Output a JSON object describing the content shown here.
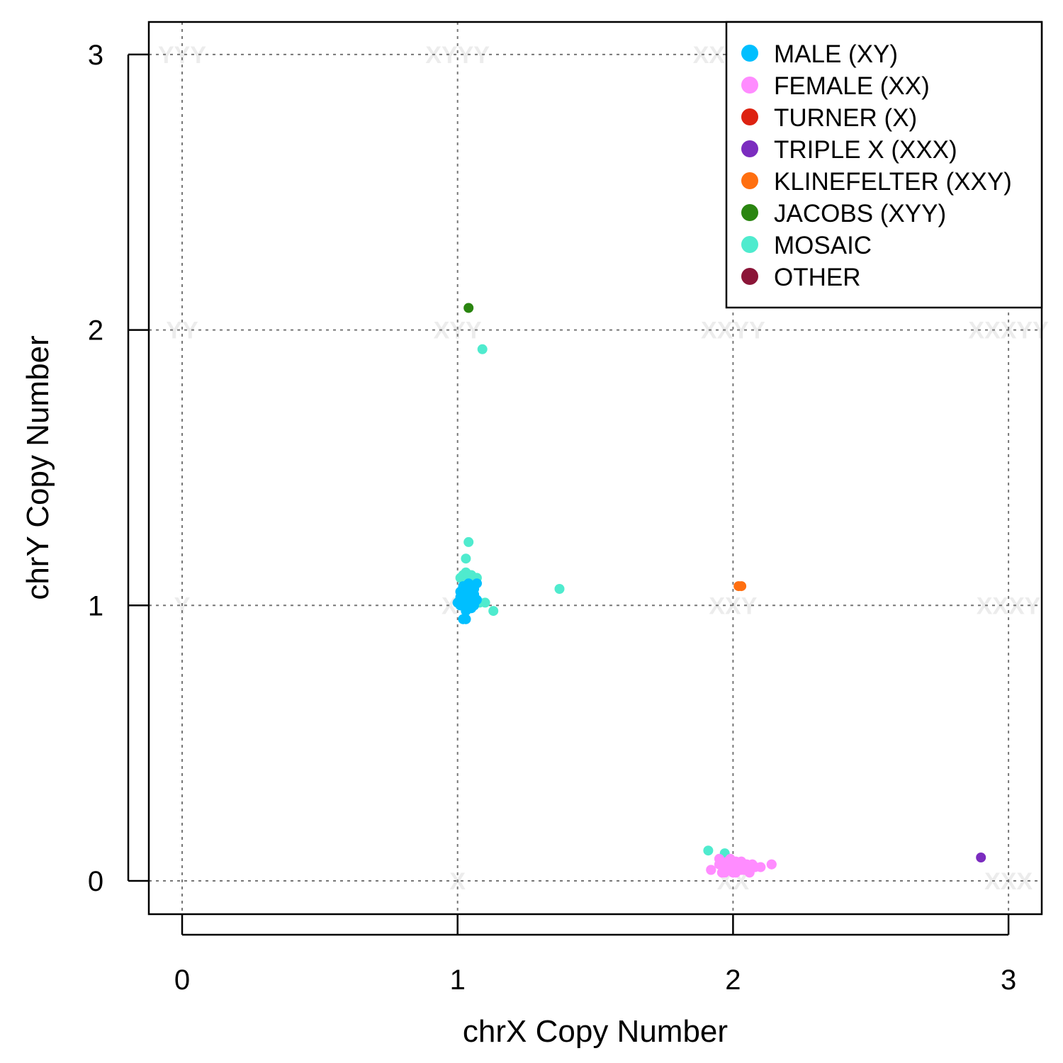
{
  "chart_data": {
    "type": "scatter",
    "xlabel": "chrX Copy Number",
    "ylabel": "chrY Copy Number",
    "xlim": [
      -0.12,
      3.12
    ],
    "ylim": [
      -0.12,
      3.12
    ],
    "x_ticks": [
      "0",
      "1",
      "2",
      "3"
    ],
    "y_ticks": [
      "0",
      "1",
      "2",
      "3"
    ],
    "grid": true,
    "legend_position": "top-right",
    "karyotype_labels": [
      {
        "text": "YYY",
        "x": 0,
        "y": 3
      },
      {
        "text": "XYYY",
        "x": 1,
        "y": 3
      },
      {
        "text": "XXYYY",
        "x": 2,
        "y": 3
      },
      {
        "text": "YY",
        "x": 0,
        "y": 2
      },
      {
        "text": "XYY",
        "x": 1,
        "y": 2
      },
      {
        "text": "XXYY",
        "x": 2,
        "y": 2
      },
      {
        "text": "XXXYY",
        "x": 3,
        "y": 2
      },
      {
        "text": "Y",
        "x": 0,
        "y": 1
      },
      {
        "text": "XY",
        "x": 1,
        "y": 1
      },
      {
        "text": "XXY",
        "x": 2,
        "y": 1
      },
      {
        "text": "XXXY",
        "x": 3,
        "y": 1
      },
      {
        "text": "X",
        "x": 1,
        "y": 0
      },
      {
        "text": "XX",
        "x": 2,
        "y": 0
      },
      {
        "text": "XXX",
        "x": 3,
        "y": 0
      }
    ],
    "series": [
      {
        "name": "MALE (XY)",
        "color": "#00bfff",
        "points": [
          [
            1.0,
            1.01
          ],
          [
            1.01,
            1.05
          ],
          [
            1.02,
            1.02
          ],
          [
            1.03,
            1.06
          ],
          [
            1.04,
            1.03
          ],
          [
            1.05,
            1.07
          ],
          [
            1.06,
            1.04
          ],
          [
            1.07,
            1.08
          ],
          [
            1.02,
            0.95
          ],
          [
            1.03,
            0.95
          ],
          [
            1.01,
            1.0
          ],
          [
            1.04,
            1.0
          ],
          [
            1.05,
            1.02
          ],
          [
            1.06,
            1.0
          ],
          [
            1.03,
            1.04
          ],
          [
            1.02,
            1.07
          ],
          [
            1.04,
            1.06
          ],
          [
            1.05,
            0.99
          ],
          [
            1.03,
            0.98
          ],
          [
            1.06,
            1.06
          ],
          [
            1.07,
            1.02
          ],
          [
            1.01,
            1.03
          ],
          [
            1.04,
            1.08
          ],
          [
            1.05,
            1.05
          ]
        ]
      },
      {
        "name": "FEMALE (XX)",
        "color": "#ff8cff",
        "points": [
          [
            1.92,
            0.04
          ],
          [
            1.95,
            0.06
          ],
          [
            1.96,
            0.03
          ],
          [
            1.97,
            0.05
          ],
          [
            1.98,
            0.07
          ],
          [
            1.99,
            0.04
          ],
          [
            2.0,
            0.06
          ],
          [
            2.01,
            0.03
          ],
          [
            2.02,
            0.05
          ],
          [
            2.03,
            0.07
          ],
          [
            2.04,
            0.04
          ],
          [
            2.05,
            0.06
          ],
          [
            2.06,
            0.05
          ],
          [
            2.07,
            0.06
          ],
          [
            2.08,
            0.05
          ],
          [
            2.1,
            0.05
          ],
          [
            2.14,
            0.06
          ],
          [
            1.95,
            0.08
          ],
          [
            2.0,
            0.03
          ],
          [
            2.03,
            0.04
          ],
          [
            1.97,
            0.03
          ],
          [
            2.01,
            0.07
          ],
          [
            2.06,
            0.03
          ],
          [
            1.99,
            0.08
          ]
        ]
      },
      {
        "name": "TURNER (X)",
        "color": "#dd2211",
        "points": []
      },
      {
        "name": "TRIPLE X (XXX)",
        "color": "#7b2cbf",
        "points": [
          [
            2.9,
            0.085
          ]
        ]
      },
      {
        "name": "KLINEFELTER (XXY)",
        "color": "#ff6f10",
        "points": [
          [
            2.02,
            1.07
          ],
          [
            2.03,
            1.07
          ]
        ]
      },
      {
        "name": "JACOBS (XYY)",
        "color": "#2a8510",
        "points": [
          [
            1.04,
            2.08
          ]
        ]
      },
      {
        "name": "MOSAIC",
        "color": "#4febce",
        "points": [
          [
            1.04,
            1.23
          ],
          [
            1.03,
            1.17
          ],
          [
            1.01,
            1.1
          ],
          [
            1.02,
            1.11
          ],
          [
            1.03,
            1.12
          ],
          [
            1.04,
            1.11
          ],
          [
            1.05,
            1.11
          ],
          [
            1.06,
            1.1
          ],
          [
            1.07,
            1.1
          ],
          [
            1.08,
            1.01
          ],
          [
            1.1,
            1.01
          ],
          [
            1.13,
            0.98
          ],
          [
            1.09,
            1.93
          ],
          [
            1.37,
            1.06
          ],
          [
            1.91,
            0.11
          ],
          [
            1.97,
            0.1
          ]
        ]
      },
      {
        "name": "OTHER",
        "color": "#8b1538",
        "points": []
      }
    ]
  }
}
